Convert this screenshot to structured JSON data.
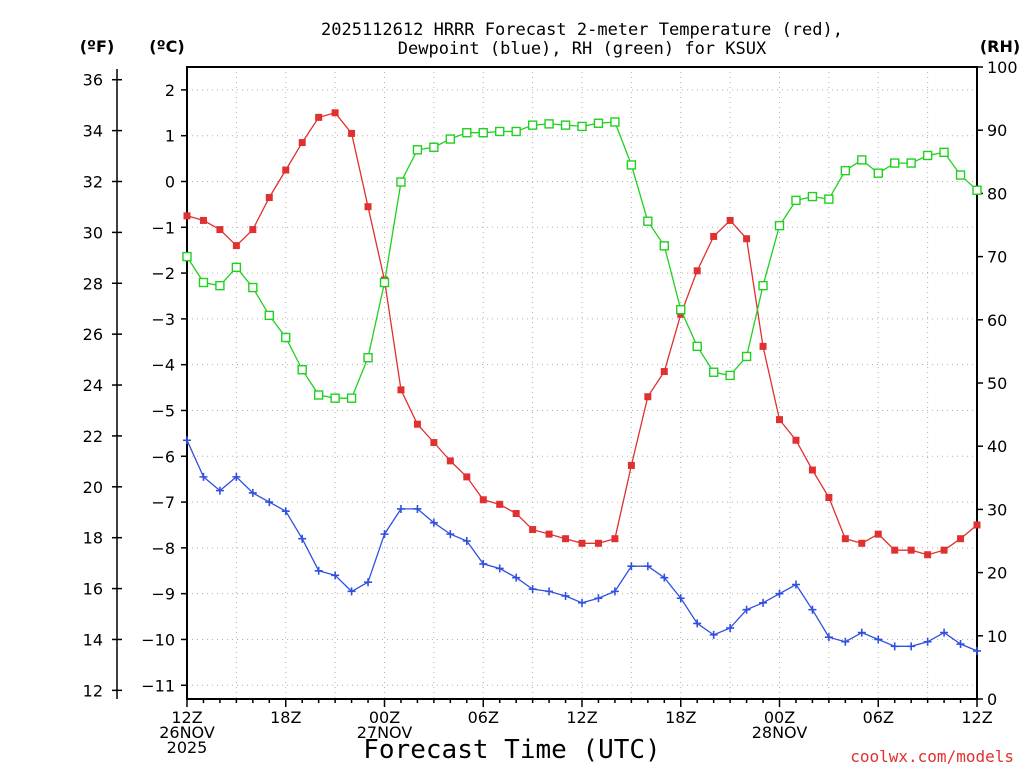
{
  "chart_data": {
    "type": "line",
    "title_lines": [
      "2025112612 HRRR Forecast 2-meter Temperature (red),",
      "Dewpoint (blue), RH (green) for KSUX"
    ],
    "xlabel": "Forecast Time (UTC)",
    "credit": "coolwx.com/models",
    "units": {
      "f": "(ºF)",
      "c": "(ºC)",
      "rh": "(RH)"
    },
    "x_ticks": [
      {
        "hour": 0,
        "lines": [
          "12Z",
          "26NOV",
          "2025"
        ]
      },
      {
        "hour": 6,
        "lines": [
          "18Z"
        ]
      },
      {
        "hour": 12,
        "lines": [
          "00Z",
          "27NOV"
        ]
      },
      {
        "hour": 18,
        "lines": [
          "06Z"
        ]
      },
      {
        "hour": 24,
        "lines": [
          "12Z"
        ]
      },
      {
        "hour": 30,
        "lines": [
          "18Z"
        ]
      },
      {
        "hour": 36,
        "lines": [
          "00Z",
          "28NOV"
        ]
      },
      {
        "hour": 42,
        "lines": [
          "06Z"
        ]
      },
      {
        "hour": 48,
        "lines": [
          "12Z"
        ]
      }
    ],
    "xlim": [
      0,
      48
    ],
    "ylim_c": [
      -11.3,
      2.5
    ],
    "f_ticks": [
      "12",
      "14",
      "16",
      "18",
      "20",
      "22",
      "24",
      "26",
      "28",
      "30",
      "32",
      "34",
      "36"
    ],
    "f_tick_values": [
      12,
      14,
      16,
      18,
      20,
      22,
      24,
      26,
      28,
      30,
      32,
      34,
      36
    ],
    "c_ticks": [
      "−11",
      "−10",
      "−9",
      "−8",
      "−7",
      "−6",
      "−5",
      "−4",
      "−3",
      "−2",
      "−1",
      "0",
      "1",
      "2"
    ],
    "c_tick_values": [
      -11,
      -10,
      -9,
      -8,
      -7,
      -6,
      -5,
      -4,
      -3,
      -2,
      -1,
      0,
      1,
      2
    ],
    "rh_ticks": [
      "0",
      "10",
      "20",
      "30",
      "40",
      "50",
      "60",
      "70",
      "80",
      "90",
      "100"
    ],
    "rh_tick_values": [
      0,
      10,
      20,
      30,
      40,
      50,
      60,
      70,
      80,
      90,
      100
    ],
    "series": [
      {
        "name": "2-meter Temperature",
        "axis": "c",
        "color": "#e03030",
        "marker": "filled-square",
        "values": [
          -0.75,
          -0.85,
          -1.05,
          -1.4,
          -1.05,
          -0.35,
          0.25,
          0.85,
          1.4,
          1.5,
          1.05,
          -0.55,
          -2.15,
          -4.55,
          -5.3,
          -5.7,
          -6.1,
          -6.45,
          -6.95,
          -7.05,
          -7.25,
          -7.6,
          -7.7,
          -7.8,
          -7.9,
          -7.9,
          -7.8,
          -6.2,
          -4.7,
          -4.15,
          -2.9,
          -1.95,
          -1.2,
          -0.85,
          -1.25,
          -3.6,
          -5.2,
          -5.65,
          -6.3,
          -6.9,
          -7.8,
          -7.9,
          -7.7,
          -8.05,
          -8.05,
          -8.15,
          -8.05,
          -7.8,
          -7.5
        ]
      },
      {
        "name": "Dewpoint",
        "axis": "c",
        "color": "#3050e0",
        "marker": "plus",
        "values": [
          -5.65,
          -6.45,
          -6.75,
          -6.45,
          -6.8,
          -7.0,
          -7.2,
          -7.8,
          -8.5,
          -8.6,
          -8.95,
          -8.75,
          -7.7,
          -7.15,
          -7.15,
          -7.45,
          -7.7,
          -7.85,
          -8.35,
          -8.45,
          -8.65,
          -8.9,
          -8.95,
          -9.05,
          -9.2,
          -9.1,
          -8.95,
          -8.4,
          -8.4,
          -8.65,
          -9.1,
          -9.65,
          -9.9,
          -9.75,
          -9.35,
          -9.2,
          -9.0,
          -8.8,
          -9.35,
          -9.95,
          -10.05,
          -9.85,
          -10.0,
          -10.15,
          -10.15,
          -10.05,
          -9.85,
          -10.1,
          -10.25
        ]
      },
      {
        "name": "RH",
        "axis": "rh",
        "color": "#20d020",
        "marker": "open-square",
        "values": [
          70,
          65.9,
          65.4,
          68.3,
          65.1,
          60.7,
          57.2,
          52.1,
          48.1,
          47.6,
          47.6,
          54,
          65.9,
          81.8,
          86.9,
          87.3,
          88.6,
          89.6,
          89.6,
          89.8,
          89.8,
          90.8,
          91,
          90.8,
          90.6,
          91.1,
          91.3,
          84.5,
          75.6,
          71.7,
          61.6,
          55.8,
          51.7,
          51.2,
          54.2,
          65.4,
          74.9,
          78.9,
          79.5,
          79.1,
          83.6,
          85.3,
          83.2,
          84.8,
          84.8,
          86,
          86.5,
          82.9,
          80.5
        ]
      }
    ]
  }
}
